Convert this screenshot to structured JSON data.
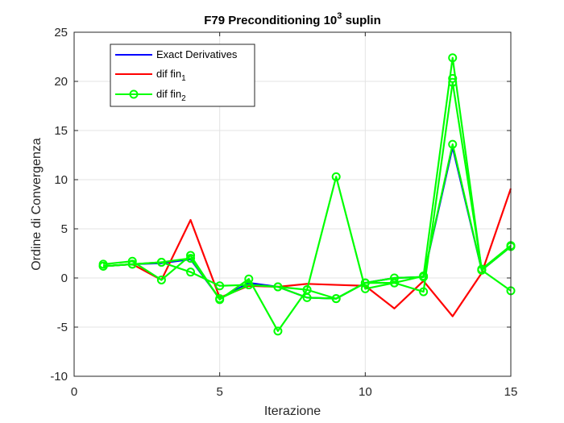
{
  "chart_data": {
    "type": "line",
    "title": {
      "main": "F79 Preconditioning 10",
      "sup": "3",
      "rest": " suplin"
    },
    "xlabel": "Iterazione",
    "ylabel": "Ordine di Convergenza",
    "xlim": [
      0,
      15
    ],
    "ylim": [
      -10,
      25
    ],
    "xticks": [
      0,
      5,
      10,
      15
    ],
    "yticks": [
      -10,
      -5,
      0,
      5,
      10,
      15,
      20,
      25
    ],
    "grid": true,
    "legend_position": "top-left",
    "legend": [
      {
        "base": "Exact Derivatives",
        "sub": ""
      },
      {
        "base": "dif fin",
        "sub": "1"
      },
      {
        "base": "dif fin",
        "sub": "2"
      }
    ],
    "series": [
      {
        "color": "#0000ff",
        "marker": "none",
        "x": [
          1,
          2,
          3,
          4,
          5,
          6,
          7,
          8,
          9,
          10,
          11,
          12,
          13,
          14,
          15
        ],
        "values": [
          1.2,
          1.4,
          1.5,
          1.9,
          -2.1,
          -0.5,
          -0.9,
          -2.0,
          -2.1,
          -0.5,
          0.0,
          0.1,
          13.3,
          0.8,
          3.2
        ]
      },
      {
        "color": "#ff0000",
        "marker": "none",
        "x": [
          1,
          2,
          3,
          4,
          5,
          6,
          7,
          8,
          9,
          10,
          11,
          12,
          13,
          14,
          15
        ],
        "values": [
          1.2,
          1.4,
          -0.2,
          5.9,
          -2.0,
          -0.8,
          -0.9,
          -0.6,
          -0.7,
          -0.8,
          -3.1,
          -0.3,
          -3.9,
          0.5,
          9.1
        ]
      },
      {
        "color": "#00ff00",
        "marker": "circle",
        "x": [
          1,
          2,
          3,
          4,
          5,
          6,
          7,
          8,
          9,
          10,
          11,
          12,
          13,
          14,
          15
        ],
        "values": [
          1.4,
          1.7,
          -0.2,
          2.3,
          -2.2,
          -0.1,
          -5.4,
          -1.2,
          10.3,
          -1.1,
          -0.5,
          -1.4,
          19.9,
          0.9,
          3.3
        ]
      },
      {
        "color": "#00ff00",
        "marker": "circle",
        "x": [
          1,
          2,
          3,
          4,
          5,
          6,
          7,
          8,
          9,
          10,
          11,
          12,
          13,
          14,
          15
        ],
        "values": [
          1.2,
          1.4,
          1.6,
          0.6,
          -0.8,
          -0.7,
          -0.9,
          -1.2,
          -2.1,
          -0.5,
          -0.5,
          0.2,
          22.4,
          0.8,
          -1.3
        ]
      },
      {
        "color": "#00ff00",
        "marker": "circle",
        "x": [
          1,
          2,
          3,
          4,
          5,
          6,
          7,
          8,
          9,
          10,
          11,
          12,
          13,
          14,
          15
        ],
        "values": [
          1.2,
          1.4,
          1.6,
          2.0,
          -2.1,
          -0.7,
          -0.9,
          -2.0,
          -2.1,
          -0.5,
          0.0,
          0.1,
          13.6,
          0.8,
          3.2
        ]
      },
      {
        "color": "#00ff00",
        "marker": "circle",
        "x": [
          13
        ],
        "values": [
          20.3
        ]
      }
    ]
  }
}
